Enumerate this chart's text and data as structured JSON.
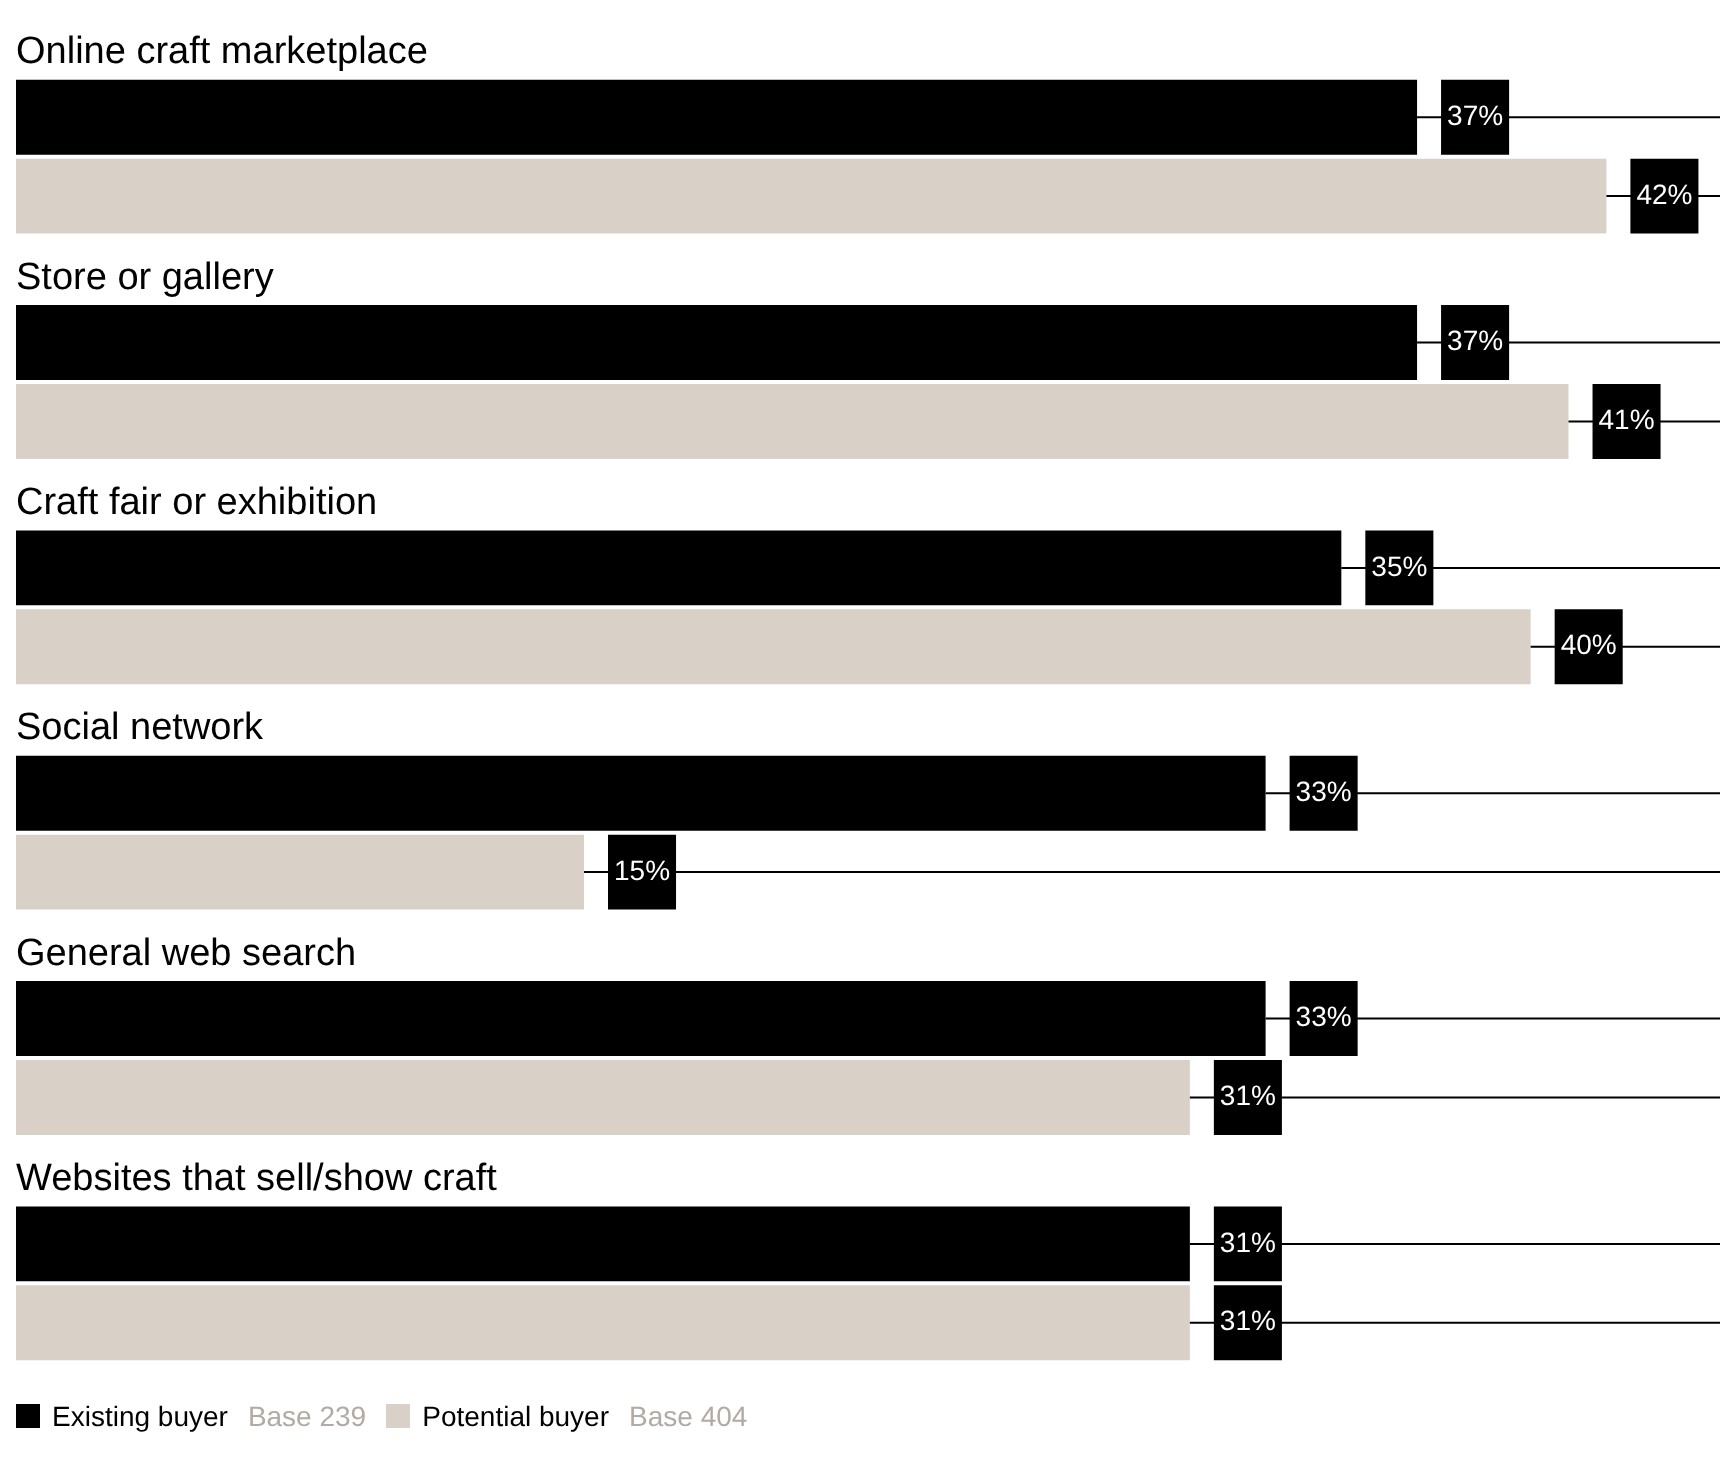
{
  "chart_data": {
    "type": "bar",
    "orientation": "horizontal",
    "categories": [
      "Online craft marketplace",
      "Store or gallery",
      "Craft fair or exhibition",
      "Social network",
      "General web search",
      "Websites that sell/show craft"
    ],
    "series": [
      {
        "name": "Existing buyer",
        "color": "#000000",
        "values": [
          37,
          37,
          35,
          33,
          33,
          31
        ],
        "value_labels": [
          "37%",
          "37%",
          "35%",
          "33%",
          "33%",
          "31%"
        ]
      },
      {
        "name": "Potential buyer",
        "color": "#d9d1c7",
        "values": [
          42,
          41,
          40,
          15,
          31,
          31
        ],
        "value_labels": [
          "42%",
          "41%",
          "40%",
          "15%",
          "31%",
          "31%"
        ]
      }
    ],
    "legend": "bottom left",
    "annotations": [
      "Base 239",
      "Base 404"
    ]
  }
}
